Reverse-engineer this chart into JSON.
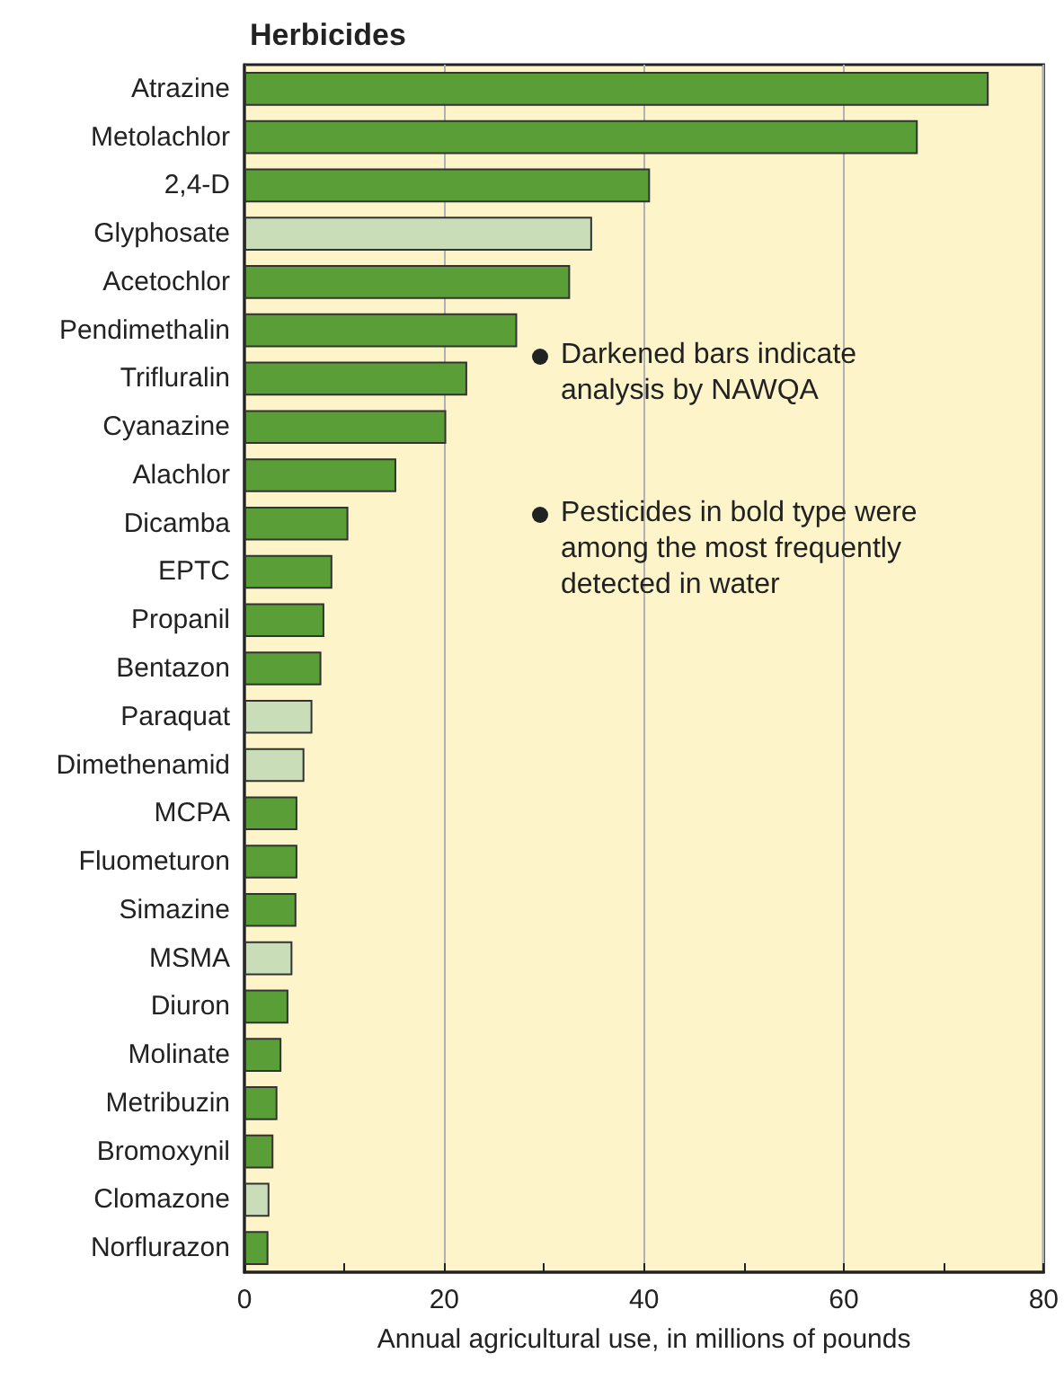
{
  "chart_data": {
    "type": "bar",
    "orientation": "horizontal",
    "title": "Herbicides",
    "xlabel": "Annual agricultural use, in millions of pounds",
    "categories": [
      "Atrazine",
      "Metolachlor",
      "2,4-D",
      "Glyphosate",
      "Acetochlor",
      "Pendimethalin",
      "Trifluralin",
      "Cyanazine",
      "Alachlor",
      "Dicamba",
      "EPTC",
      "Propanil",
      "Bentazon",
      "Paraquat",
      "Dimethenamid",
      "MCPA",
      "Fluometuron",
      "Simazine",
      "MSMA",
      "Diuron",
      "Molinate",
      "Metribuzin",
      "Bromoxynil",
      "Clomazone",
      "Norflurazon"
    ],
    "values": [
      74.5,
      67.4,
      40.6,
      34.8,
      32.6,
      27.3,
      22.3,
      20.2,
      15.2,
      10.4,
      8.8,
      8.0,
      7.7,
      6.8,
      6.0,
      5.3,
      5.3,
      5.2,
      4.8,
      4.4,
      3.7,
      3.3,
      2.9,
      2.5,
      2.4
    ],
    "colors": [
      "#5a9e37",
      "#5a9e37",
      "#5a9e37",
      "#c9ddb9",
      "#5a9e37",
      "#5a9e37",
      "#5a9e37",
      "#5a9e37",
      "#5a9e37",
      "#5a9e37",
      "#5a9e37",
      "#5a9e37",
      "#5a9e37",
      "#c9ddb9",
      "#c9ddb9",
      "#5a9e37",
      "#5a9e37",
      "#5a9e37",
      "#c9ddb9",
      "#5a9e37",
      "#5a9e37",
      "#5a9e37",
      "#5a9e37",
      "#c9ddb9",
      "#5a9e37"
    ],
    "xlim": [
      0,
      80
    ],
    "xticks": [
      0,
      {
        "value": 10,
        "label": null
      },
      20,
      {
        "value": 30,
        "label": null
      },
      40,
      {
        "value": 50,
        "label": null
      },
      60,
      {
        "value": 70,
        "label": null
      },
      80
    ],
    "grid": "x",
    "annotations": [
      "Darkened bars indicate analysis by NAWQA",
      "Pesticides in bold type were among the most frequently detected in water"
    ]
  }
}
